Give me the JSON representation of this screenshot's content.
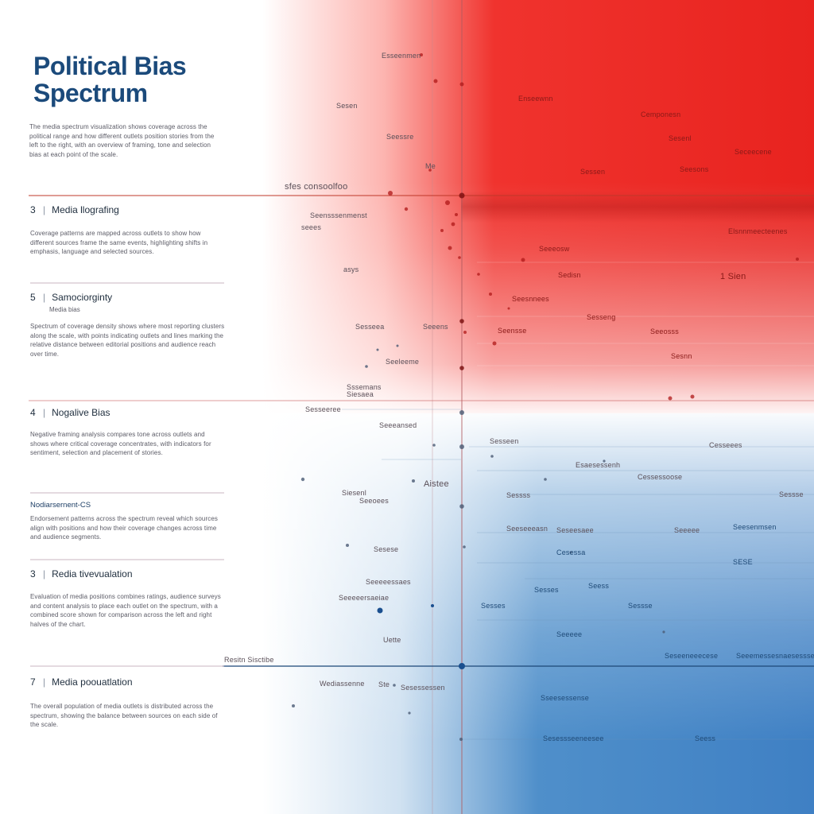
{
  "panel": {
    "title_line1": "Political Bias",
    "title_line2": "Spectrum",
    "intro": "The media spectrum visualization shows coverage across the political range and how different outlets position stories from the left to the right, with an overview of framing, tone and selection bias at each point of the scale.",
    "sections": [
      {
        "num": "3",
        "heading": "Media llografing",
        "body": "Coverage patterns are mapped across outlets to show how different sources frame the same events, highlighting shifts in emphasis, language and selected sources."
      },
      {
        "num": "5",
        "heading": "Samociorginty",
        "sub": "Media bias",
        "body": "Spectrum of coverage density shows where most reporting clusters along the scale, with points indicating outlets and lines marking the relative distance between editorial positions and audience reach over time."
      },
      {
        "num": "4",
        "heading": "Nogalive Bias",
        "body": "Negative framing analysis compares tone across outlets and shows where critical coverage concentrates, with indicators for sentiment, selection and placement of stories."
      },
      {
        "plain": "Nodiarsernent-CS",
        "body": "Endorsement patterns across the spectrum reveal which sources align with positions and how their coverage changes across time and audience segments."
      },
      {
        "num": "3",
        "heading": "Redia tivevualation",
        "body": "Evaluation of media positions combines ratings, audience surveys and content analysis to place each outlet on the spectrum, with a combined score shown for comparison across the left and right halves of the chart."
      },
      {
        "num": "7",
        "heading": "Media poouatlation",
        "body": "The overall population of media outlets is distributed across the spectrum, showing the balance between sources on each side of the scale."
      }
    ]
  },
  "viz": {
    "colors": {
      "left": "#e8231f",
      "right": "#3f80c4"
    },
    "labels": {
      "l1": "Esseenmen",
      "l2": "Sesen",
      "l3": "Seessre",
      "l4": "Me",
      "l5": "sfes  consoolfoo",
      "l6": "Seensssenmenst",
      "l7": "seees",
      "l8": "asys",
      "l9": "Sesseea",
      "l10": "Seeens",
      "l11": "Seeleeme",
      "l12": "Sssemans",
      "l13": "Siesaea",
      "l14": "Sesseeree",
      "l15": "Enseewnn",
      "l16": "Cemponesn",
      "l17": "Sesenl",
      "l18": "Seceecene",
      "l19": "Elsnnmeecteenes",
      "l20": "Seeeosw",
      "l21": "1 Sien",
      "l22": "Sedisn",
      "l23": "Seesnnees",
      "l24": "Sesseng",
      "l25": "Seensse",
      "l26": "Seeosss",
      "l27": "Seeeansed",
      "l28": "Esaesessenh",
      "l29": "Sesseen",
      "l30": "Cesseees",
      "l31": "Sesnn",
      "l32": "Sessen",
      "l33": "Seesons",
      "l34": "Aistee",
      "l35": "Cessessoose",
      "l36": "Siesenl",
      "l37": "Seeoees",
      "l38": "Sessss",
      "l39": "Seeseeeasn",
      "l40": "Seseesaee",
      "l41": "Seesenmsen",
      "l42": "Seeeeessaes",
      "l43": "Cesessa",
      "l44": "SESE",
      "l45": "Seeeeersaeiae",
      "l46": "Sesese",
      "l47": "Sessse",
      "l48": "Seeeee",
      "l49": "Uette",
      "l50": "Sesses",
      "l51": "Resitn Sisctibe",
      "l52": "Seseeneeecese",
      "l53": "Seeemessesnaesessse",
      "l54": "Wediassenne",
      "l55": "Ste",
      "l56": "Sesessessen",
      "l57": "Sesessseeneesee",
      "l58": "Sseesessense",
      "l59": "Seess"
    }
  }
}
